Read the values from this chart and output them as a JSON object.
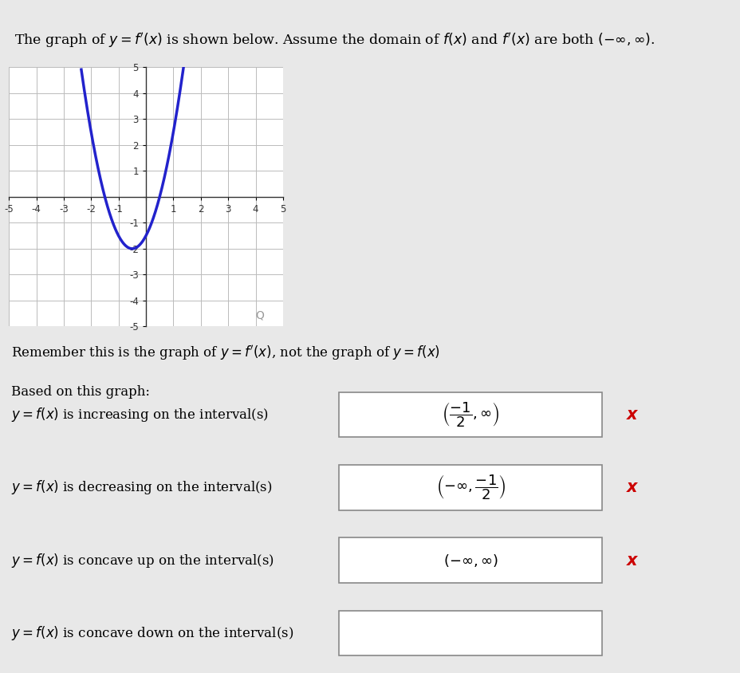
{
  "title_text": "The graph of $y = f'(x)$ is shown below. Assume the domain of $f(x)$ and $f'(x)$ are both $(-\\infty, \\infty)$.",
  "remember_text": "Remember this is the graph of $y = f'(x)$, not the graph of $y = f(x)$",
  "based_text": "Based on this graph:",
  "rows": [
    {
      "label": "$y = f(x)$ is increasing on the interval(s)",
      "answer": "$\\left(\\dfrac{-1}{2}, \\infty\\right)$",
      "has_x": true
    },
    {
      "label": "$y = f(x)$ is decreasing on the interval(s)",
      "answer": "$\\left(-\\infty, \\dfrac{-1}{2}\\right)$",
      "has_x": true
    },
    {
      "label": "$y = f(x)$ is concave up on the interval(s)",
      "answer": "$(-\\infty, \\infty)$",
      "has_x": true
    },
    {
      "label": "$y = f(x)$ is concave down on the interval(s)",
      "answer": "",
      "has_x": false
    }
  ],
  "curve_color": "#2222CC",
  "grid_color": "#BBBBBB",
  "axis_color": "#333333",
  "bg_color": "#E8E8E8",
  "x_color": "#CC0000",
  "xlim": [
    -5,
    5
  ],
  "ylim": [
    -5,
    5
  ],
  "parabola_vertex_x": -0.5,
  "parabola_vertex_y": -2,
  "parabola_a": 2
}
